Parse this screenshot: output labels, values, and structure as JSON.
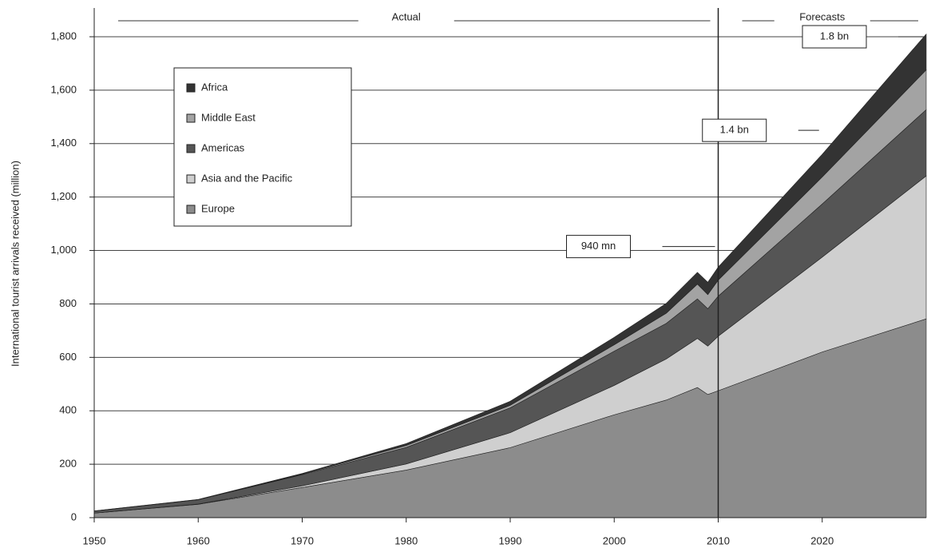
{
  "chart_data": {
    "type": "stacked_area",
    "y_label": "International tourist arrivals received (million)",
    "x": [
      1950,
      1960,
      1970,
      1980,
      1990,
      2000,
      2005,
      2008,
      2009,
      2010,
      2020,
      2030
    ],
    "series": [
      {
        "name": "Europe",
        "color": "#8c8c8c",
        "values": [
          17,
          50,
          113,
          178,
          262,
          385,
          440,
          487,
          461,
          475,
          620,
          744
        ]
      },
      {
        "name": "Asia and the Pacific",
        "color": "#cfcfcf",
        "values": [
          0.2,
          1,
          6,
          23,
          56,
          110,
          154,
          184,
          181,
          204,
          355,
          535
        ]
      },
      {
        "name": "Americas",
        "color": "#555555",
        "values": [
          7.5,
          16,
          42,
          62,
          93,
          128,
          133,
          148,
          140,
          150,
          199,
          248
        ]
      },
      {
        "name": "Middle East",
        "color": "#a3a3a3",
        "values": [
          0.2,
          0.6,
          2,
          7,
          9.6,
          24,
          38,
          55,
          53,
          60,
          101,
          149
        ]
      },
      {
        "name": "Africa",
        "color": "#333333",
        "values": [
          0.5,
          0.8,
          2.4,
          7.2,
          15,
          28,
          37,
          44,
          46,
          49,
          85,
          134
        ]
      }
    ],
    "xlim": [
      1950,
      2030
    ],
    "ylim": [
      0,
      1800
    ],
    "xticks": [
      1950,
      1960,
      1970,
      1980,
      1990,
      2000,
      2010,
      2020
    ],
    "yticks": [
      0,
      200,
      400,
      600,
      800,
      {
        "value": 1000,
        "label": "1,000"
      },
      {
        "value": 1200,
        "label": "1,200"
      },
      {
        "value": 1400,
        "label": "1,400"
      },
      {
        "value": 1600,
        "label": "1,600"
      },
      {
        "value": 1800,
        "label": "1,800"
      }
    ],
    "grid": true,
    "periods": [
      {
        "text": "Actual",
        "x": [
          1950,
          2010
        ]
      },
      {
        "text": "Forecasts",
        "x": [
          2010,
          2030
        ]
      }
    ],
    "annotations": [
      {
        "text": "940 mn",
        "x": 2010,
        "y": 940
      },
      {
        "text": "1.4 bn",
        "x": 2020,
        "y": 1360
      },
      {
        "text": "1.8 bn",
        "x": 2030,
        "y": 1800
      }
    ]
  }
}
